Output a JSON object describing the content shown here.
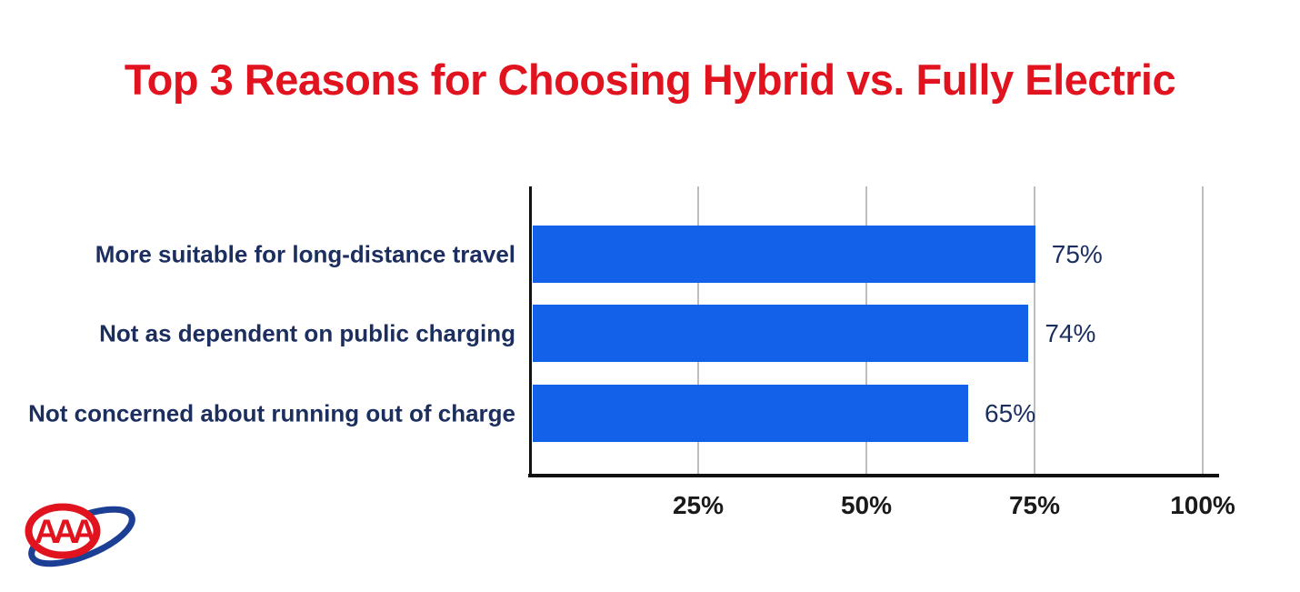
{
  "page": {
    "background": "#FFFFFF"
  },
  "header": {
    "title": "Top 3 Reasons for Choosing Hybrid vs. Fully Electric",
    "title_color": "#E0131F"
  },
  "chart_data": {
    "type": "bar",
    "orientation": "horizontal",
    "title": "Top 3 Reasons for Choosing Hybrid vs. Fully Electric",
    "categories": [
      "More suitable for long-distance travel",
      "Not as dependent on public charging",
      "Not concerned about running out of charge"
    ],
    "values": [
      75,
      74,
      65
    ],
    "value_labels": [
      "75%",
      "74%",
      "65%"
    ],
    "xlim": [
      0,
      100
    ],
    "x_ticks": [
      {
        "label": "25%",
        "value": 25
      },
      {
        "label": "50%",
        "value": 50
      },
      {
        "label": "75%",
        "value": 75
      },
      {
        "label": "100%",
        "value": 100
      }
    ],
    "grid": "vertical-gridlines-on",
    "legend": "none",
    "bar_color": "#1261E8",
    "category_label_color": "#1B2E5E",
    "value_label_color": "#1B2E5E",
    "tick_label_color": "#1A1A1A",
    "gridline_color": "#BDBDBD",
    "axis_color": "#111111"
  },
  "logo": {
    "name": "AAA",
    "text": "AAA",
    "oval_color": "#E0131F",
    "swoosh_color": "#1C3E94"
  }
}
